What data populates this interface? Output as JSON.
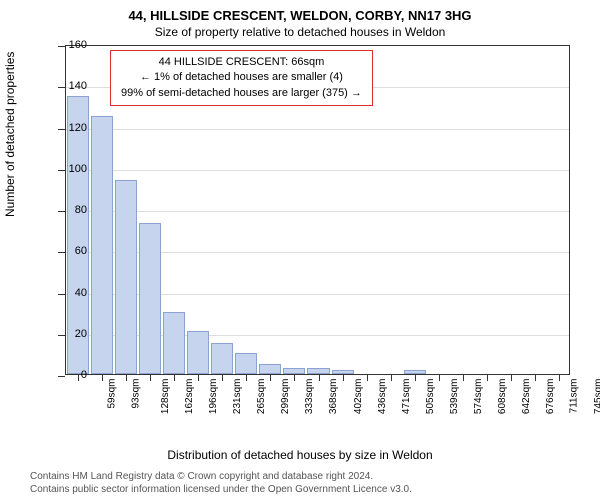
{
  "title": "44, HILLSIDE CRESCENT, WELDON, CORBY, NN17 3HG",
  "subtitle": "Size of property relative to detached houses in Weldon",
  "infobox": {
    "line1": "44 HILLSIDE CRESCENT: 66sqm",
    "line2": "← 1% of detached houses are smaller (4)",
    "line3": "99% of semi-detached houses are larger (375) →"
  },
  "chart": {
    "type": "bar",
    "x_categories": [
      "59sqm",
      "93sqm",
      "128sqm",
      "162sqm",
      "196sqm",
      "231sqm",
      "265sqm",
      "299sqm",
      "333sqm",
      "368sqm",
      "402sqm",
      "436sqm",
      "471sqm",
      "505sqm",
      "539sqm",
      "574sqm",
      "608sqm",
      "642sqm",
      "676sqm",
      "711sqm",
      "745sqm"
    ],
    "values": [
      135,
      125,
      94,
      73,
      30,
      21,
      15,
      10,
      5,
      3,
      3,
      2,
      0,
      0,
      2,
      0,
      0,
      0,
      0,
      0,
      0
    ],
    "ylim": [
      0,
      160
    ],
    "ytick_step": 20,
    "yticks": [
      0,
      20,
      40,
      60,
      80,
      100,
      120,
      140,
      160
    ],
    "bar_color": "#c6d4ee",
    "bar_border_color": "#8aa3d0",
    "grid_color": "#dddddd",
    "axis_color": "#333333",
    "background_color": "#ffffff",
    "bar_gap": 2,
    "label_fontsize": 11,
    "tick_fontsize": 10
  },
  "y_axis_title": "Number of detached properties",
  "x_axis_title": "Distribution of detached houses by size in Weldon",
  "footer": {
    "line1": "Contains HM Land Registry data © Crown copyright and database right 2024.",
    "line2": "Contains public sector information licensed under the Open Government Licence v3.0."
  }
}
